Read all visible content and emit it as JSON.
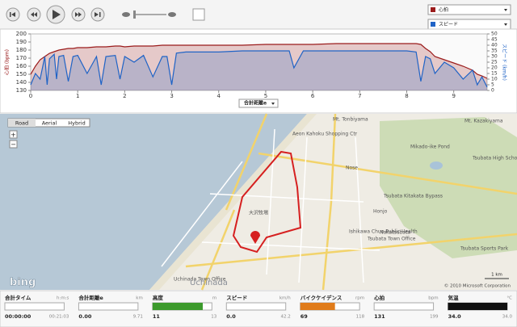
{
  "chart_data": {
    "type": "area",
    "x_label": "合計距離e",
    "y_label": "心拍 (bpm)",
    "y2_label": "スピード (km/h)",
    "x": [
      0,
      0.1,
      0.2,
      0.3,
      0.35,
      0.4,
      0.5,
      0.55,
      0.6,
      0.7,
      0.8,
      0.9,
      1.0,
      1.2,
      1.4,
      1.5,
      1.6,
      1.8,
      1.9,
      2.0,
      2.2,
      2.4,
      2.6,
      2.8,
      2.9,
      3.0,
      3.1,
      3.3,
      3.5,
      4.0,
      4.5,
      5.0,
      5.5,
      5.6,
      5.8,
      6.0,
      6.5,
      7.0,
      7.5,
      8.0,
      8.2,
      8.3,
      8.4,
      8.5,
      8.6,
      8.8,
      9.0,
      9.2,
      9.4,
      9.5,
      9.6,
      9.71
    ],
    "xlim": [
      0,
      9.71
    ],
    "xticks": [
      0,
      1,
      2,
      3,
      4,
      5,
      6,
      7,
      8,
      9
    ],
    "ylim": [
      130,
      200
    ],
    "yticks": [
      130,
      140,
      150,
      160,
      170,
      180,
      190,
      200
    ],
    "y2lim": [
      0,
      50
    ],
    "y2ticks": [
      0,
      5,
      10,
      15,
      20,
      25,
      30,
      35,
      40,
      45,
      50
    ],
    "series": [
      {
        "name": "心拍",
        "color": "#9b1c1c",
        "values": [
          150,
          160,
          168,
          172,
          174,
          176,
          178,
          179,
          180,
          181,
          182,
          182,
          183,
          183,
          184,
          184,
          184,
          185,
          185,
          184,
          185,
          185,
          185,
          186,
          186,
          186,
          186,
          186,
          186,
          186,
          186,
          187,
          187,
          187,
          187,
          187,
          188,
          188,
          188,
          188,
          188,
          187,
          182,
          178,
          172,
          168,
          164,
          160,
          155,
          150,
          148,
          145
        ]
      },
      {
        "name": "スピード",
        "color": "#1f63c6",
        "axis": "y2",
        "values": [
          5,
          15,
          10,
          30,
          5,
          28,
          32,
          10,
          30,
          31,
          8,
          30,
          31,
          15,
          30,
          5,
          30,
          31,
          10,
          30,
          25,
          31,
          12,
          30,
          30,
          5,
          33,
          34,
          34,
          34,
          35,
          35,
          35,
          20,
          35,
          35,
          35,
          35,
          35,
          35,
          34,
          8,
          30,
          28,
          15,
          25,
          20,
          10,
          18,
          5,
          12,
          3
        ]
      }
    ]
  },
  "map": {
    "buttons": [
      "Road",
      "Aerial",
      "Hybrid"
    ],
    "labels": [
      "Mt. Tonbiyama",
      "Aeon Kahoku Shopping Ctr",
      "Nose",
      "Mikado-ike Pond",
      "Mt. Kazakiyama",
      "Tsubata High School",
      "Tsubata Kitakata Bypass",
      "Honjo",
      "Ishikawa Chuo Public Health",
      "Tsubata Town Office",
      "Nakatsubata",
      "Tsubata Sports Park",
      "Uchinada Town Office",
      "Uchinada",
      "大沢牧場"
    ],
    "logo": "bing",
    "copyright": "© 2010 Microsoft Corporation",
    "scale": "1 km"
  },
  "stats": [
    {
      "label": "合計タイム",
      "unit": "h:m:s",
      "value": "00:00:00",
      "max": "00:21:03"
    },
    {
      "label": "合計距離e",
      "unit": "km",
      "value": "0.00",
      "max": "9.71"
    },
    {
      "label": "高度",
      "unit": "m",
      "value": "11",
      "max": "13",
      "color": "#3c9a2c"
    },
    {
      "label": "スピード",
      "unit": "km/h",
      "value": "0.0",
      "max": "42.2"
    },
    {
      "label": "バイクケイデンス",
      "unit": "rpm",
      "value": "69",
      "max": "118",
      "color": "#e07b1a"
    },
    {
      "label": "心拍",
      "unit": "bpm",
      "value": "131",
      "max": "199"
    },
    {
      "label": "気温",
      "unit": "°C",
      "value": "34.0",
      "max": "34.0",
      "color": "#111111"
    }
  ]
}
